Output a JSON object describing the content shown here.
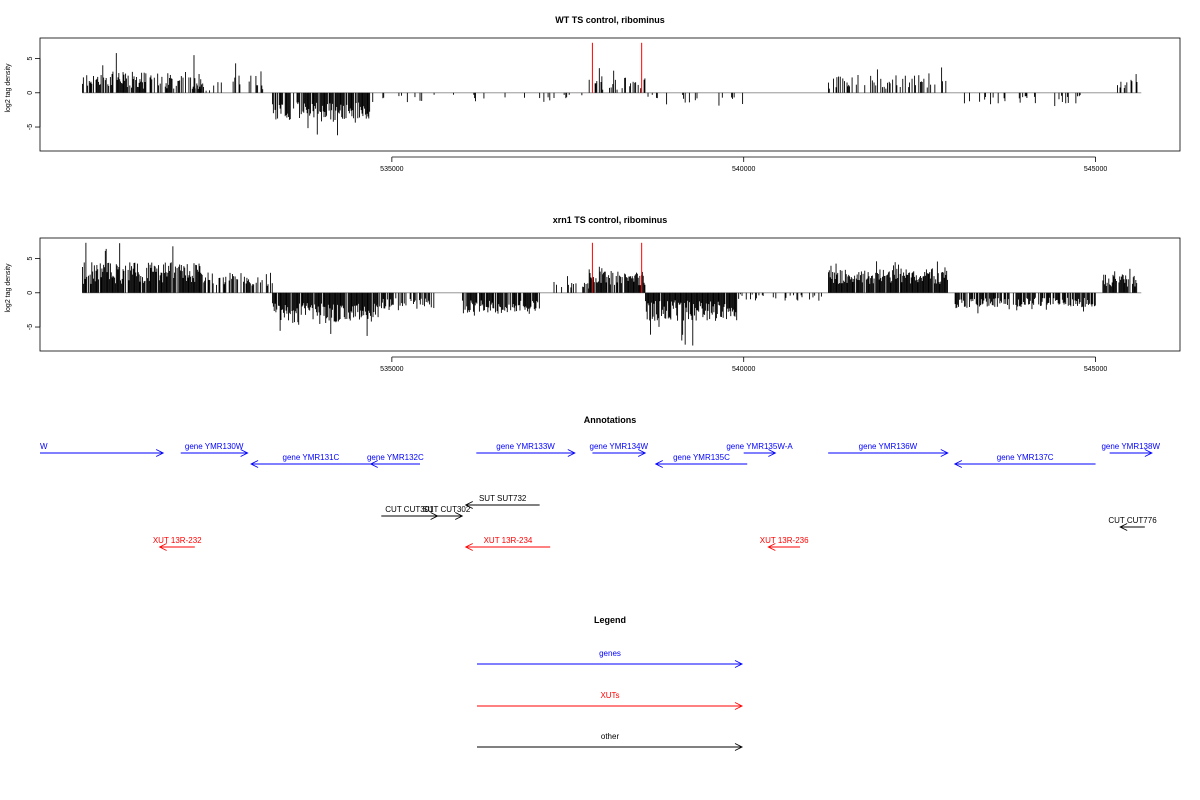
{
  "chart_data": [
    {
      "type": "bar",
      "title": "WT TS control, ribominus",
      "xlabel": "",
      "ylabel": "log2 tag density",
      "xlim": [
        530000,
        546200
      ],
      "ylim": [
        -8.5,
        8
      ],
      "x_ticks": [
        535000,
        540000,
        545000
      ],
      "x_tick_labels": [
        "535000",
        "540000",
        "545000"
      ],
      "y_ticks": [
        5,
        0,
        -5
      ],
      "y_tick_labels": [
        "5",
        "0",
        "-5"
      ],
      "grid": false,
      "baseline": 0,
      "series": [],
      "regions": [
        {
          "x0": 530600,
          "x1": 532300,
          "mean": 1.8,
          "amp": 1.3,
          "peak": 5.8,
          "density": 0.7,
          "sign": 1
        },
        {
          "x0": 532200,
          "x1": 533200,
          "mean": 1.4,
          "amp": 1.2,
          "peak": 4.3,
          "density": 0.25,
          "sign": 1
        },
        {
          "x0": 533300,
          "x1": 534700,
          "mean": -2.8,
          "amp": 1.5,
          "peak": -6.2,
          "density": 0.8,
          "sign": -1
        },
        {
          "x0": 534700,
          "x1": 535500,
          "mean": -0.8,
          "amp": 0.6,
          "peak": -1.5,
          "density": 0.12,
          "sign": -1
        },
        {
          "x0": 535500,
          "x1": 537700,
          "mean": -0.8,
          "amp": 0.6,
          "peak": -1.8,
          "density": 0.08,
          "sign": -1
        },
        {
          "x0": 537800,
          "x1": 538600,
          "mean": 1.3,
          "amp": 0.9,
          "peak": 3.6,
          "density": 0.35,
          "sign": 1
        },
        {
          "x0": 538600,
          "x1": 540000,
          "mean": -1.1,
          "amp": 0.8,
          "peak": -3.6,
          "density": 0.2,
          "sign": -1
        },
        {
          "x0": 541200,
          "x1": 542900,
          "mean": 1.6,
          "amp": 1.0,
          "peak": 3.7,
          "density": 0.3,
          "sign": 1
        },
        {
          "x0": 543000,
          "x1": 544800,
          "mean": -1.0,
          "amp": 0.7,
          "peak": -2.5,
          "density": 0.15,
          "sign": -1
        },
        {
          "x0": 545200,
          "x1": 545600,
          "mean": 1.6,
          "amp": 1.0,
          "peak": 3.7,
          "density": 0.35,
          "sign": 1
        }
      ],
      "markers": [
        {
          "x": 537850,
          "y": 7.3,
          "color": "#ff0000"
        },
        {
          "x": 538550,
          "y": 7.3,
          "color": "#ff0000"
        }
      ]
    },
    {
      "type": "bar",
      "title": "xrn1 TS control, ribominus",
      "xlabel": "",
      "ylabel": "log2 tag density",
      "xlim": [
        530000,
        546200
      ],
      "ylim": [
        -8.5,
        8
      ],
      "x_ticks": [
        535000,
        540000,
        545000
      ],
      "x_tick_labels": [
        "535000",
        "540000",
        "545000"
      ],
      "y_ticks": [
        5,
        0,
        -5
      ],
      "y_tick_labels": [
        "5",
        "0",
        "-5"
      ],
      "grid": false,
      "baseline": 0,
      "series": [],
      "regions": [
        {
          "x0": 530600,
          "x1": 532300,
          "mean": 2.9,
          "amp": 1.6,
          "peak": 7.3,
          "density": 0.95,
          "sign": 1
        },
        {
          "x0": 532300,
          "x1": 533300,
          "mean": 2.0,
          "amp": 1.0,
          "peak": 4.2,
          "density": 0.6,
          "sign": 1
        },
        {
          "x0": 533300,
          "x1": 534800,
          "mean": -2.9,
          "amp": 1.4,
          "peak": -6.3,
          "density": 0.95,
          "sign": -1
        },
        {
          "x0": 534800,
          "x1": 535600,
          "mean": -1.6,
          "amp": 0.8,
          "peak": -3.0,
          "density": 0.6,
          "sign": -1
        },
        {
          "x0": 536000,
          "x1": 537100,
          "mean": -2.1,
          "amp": 1.0,
          "peak": -4.5,
          "density": 0.85,
          "sign": -1
        },
        {
          "x0": 537300,
          "x1": 537800,
          "mean": 1.0,
          "amp": 0.6,
          "peak": 2.5,
          "density": 0.25,
          "sign": 1
        },
        {
          "x0": 537800,
          "x1": 538600,
          "mean": 2.1,
          "amp": 1.0,
          "peak": 3.8,
          "density": 0.85,
          "sign": 1
        },
        {
          "x0": 538600,
          "x1": 539900,
          "mean": -2.6,
          "amp": 1.5,
          "peak": -7.7,
          "density": 0.95,
          "sign": -1
        },
        {
          "x0": 539900,
          "x1": 541100,
          "mean": -0.7,
          "amp": 0.5,
          "peak": -1.5,
          "density": 0.25,
          "sign": -1
        },
        {
          "x0": 541200,
          "x1": 542900,
          "mean": 2.4,
          "amp": 1.1,
          "peak": 4.6,
          "density": 0.95,
          "sign": 1
        },
        {
          "x0": 543000,
          "x1": 545000,
          "mean": -1.4,
          "amp": 0.7,
          "peak": -3.0,
          "density": 0.75,
          "sign": -1
        },
        {
          "x0": 545100,
          "x1": 545600,
          "mean": 1.8,
          "amp": 0.9,
          "peak": 3.5,
          "density": 0.8,
          "sign": 1
        }
      ],
      "markers": [
        {
          "x": 537850,
          "y": 7.3,
          "color": "#ff0000"
        },
        {
          "x": 538550,
          "y": 7.3,
          "color": "#ff0000"
        }
      ]
    }
  ],
  "annotations": {
    "title": "Annotations",
    "items": [
      {
        "label": "W",
        "x0": 530000,
        "x1": 531750,
        "row": 0,
        "strand": "+",
        "color": "#0000ff",
        "label_x": 530000,
        "anchor": "start"
      },
      {
        "label": "gene YMR130W",
        "x0": 532000,
        "x1": 532950,
        "row": 0,
        "strand": "+",
        "color": "#0000ff"
      },
      {
        "label": "gene YMR131C",
        "x0": 533000,
        "x1": 534700,
        "row": 1,
        "strand": "-",
        "color": "#0000ff"
      },
      {
        "label": "gene YMR132C",
        "x0": 534700,
        "x1": 535400,
        "row": 1,
        "strand": "-",
        "color": "#0000ff"
      },
      {
        "label": "gene YMR133W",
        "x0": 536200,
        "x1": 537600,
        "row": 0,
        "strand": "+",
        "color": "#0000ff"
      },
      {
        "label": "gene YMR134W",
        "x0": 537850,
        "x1": 538600,
        "row": 0,
        "strand": "+",
        "color": "#0000ff"
      },
      {
        "label": "gene YMR135C",
        "x0": 538750,
        "x1": 540050,
        "row": 1,
        "strand": "-",
        "color": "#0000ff"
      },
      {
        "label": "gene YMR135W-A",
        "x0": 540000,
        "x1": 540450,
        "row": 0,
        "strand": "+",
        "color": "#0000ff"
      },
      {
        "label": "gene YMR136W",
        "x0": 541200,
        "x1": 542900,
        "row": 0,
        "strand": "+",
        "color": "#0000ff"
      },
      {
        "label": "gene YMR137C",
        "x0": 543000,
        "x1": 545000,
        "row": 1,
        "strand": "-",
        "color": "#0000ff"
      },
      {
        "label": "gene YMR138W",
        "x0": 545200,
        "x1": 545800,
        "row": 0,
        "strand": "+",
        "color": "#0000ff"
      },
      {
        "label": "SUT SUT732",
        "x0": 536050,
        "x1": 537100,
        "row": 2,
        "strand": "-",
        "color": "#000000"
      },
      {
        "label": "CUT CUT301",
        "x0": 534850,
        "x1": 535650,
        "row": 3,
        "strand": "+",
        "color": "#000000"
      },
      {
        "label": "SUT CUT302",
        "x0": 535550,
        "x1": 536000,
        "row": 3,
        "strand": "+",
        "color": "#000000"
      },
      {
        "label": "CUT CUT776",
        "x0": 545350,
        "x1": 545700,
        "row": 4,
        "strand": "-",
        "color": "#000000"
      },
      {
        "label": "XUT 13R-232",
        "x0": 531700,
        "x1": 532200,
        "row": 5,
        "strand": "-",
        "color": "#ff0000"
      },
      {
        "label": "XUT 13R-234",
        "x0": 536050,
        "x1": 537250,
        "row": 5,
        "strand": "-",
        "color": "#ff0000"
      },
      {
        "label": "XUT 13R-236",
        "x0": 540350,
        "x1": 540800,
        "row": 5,
        "strand": "-",
        "color": "#ff0000"
      }
    ]
  },
  "legend": {
    "title": "Legend",
    "items": [
      {
        "label": "genes",
        "color": "#0000ff"
      },
      {
        "label": "XUTs",
        "color": "#ff0000"
      },
      {
        "label": "other",
        "color": "#000000"
      }
    ]
  }
}
